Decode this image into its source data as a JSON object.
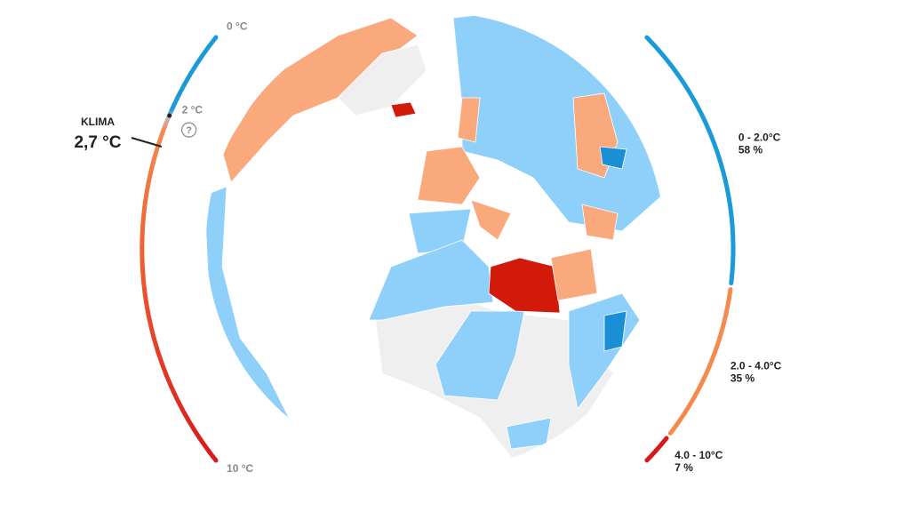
{
  "scale": {
    "ticks": [
      {
        "value": 0,
        "label": "0 °C"
      },
      {
        "value": 2,
        "label": "2 °C"
      },
      {
        "value": 10,
        "label": "10 °C"
      }
    ],
    "help": "?",
    "current": {
      "title": "KLIMA",
      "value": 2.7,
      "label": "2,7 °C"
    }
  },
  "distribution": [
    {
      "range": "0 - 2.0°C",
      "share": 58,
      "share_label": "58 %",
      "color": "#1a9bd7"
    },
    {
      "range": "2.0 - 4.0°C",
      "share": 35,
      "share_label": "35 %",
      "color": "#f58a4e"
    },
    {
      "range": "4.0 - 10°C",
      "share": 7,
      "share_label": "7 %",
      "color": "#d7191c"
    }
  ]
}
